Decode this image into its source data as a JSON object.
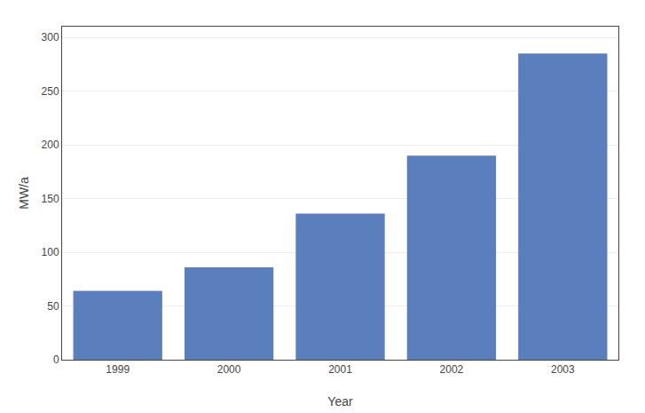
{
  "chart_data": {
    "type": "bar",
    "xlabel": "Year",
    "ylabel": "MW/a",
    "categories": [
      "1999",
      "2000",
      "2001",
      "2002",
      "2003"
    ],
    "values": [
      64,
      86,
      136,
      190,
      285
    ],
    "color": "#5b7fbc",
    "ylim": [
      0,
      310
    ],
    "yticks": [
      0,
      50,
      100,
      150,
      200,
      250,
      300
    ],
    "grid": true
  }
}
